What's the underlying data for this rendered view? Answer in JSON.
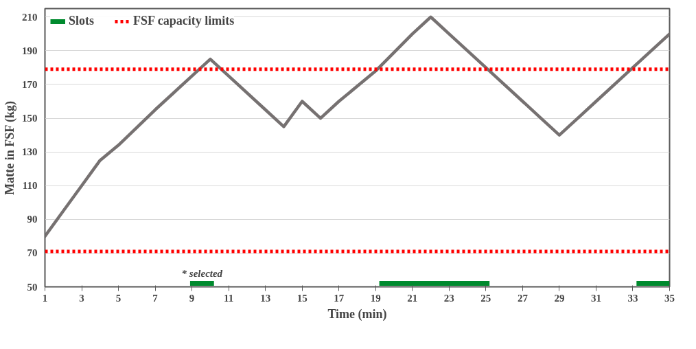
{
  "chart_data": {
    "type": "line",
    "xlabel": "Time (min)",
    "ylabel": "Matte in FSF (kg)",
    "xlim": [
      1,
      35
    ],
    "ylim": [
      50,
      215
    ],
    "xticks": [
      1,
      3,
      5,
      7,
      9,
      11,
      13,
      15,
      17,
      19,
      21,
      23,
      25,
      27,
      29,
      31,
      33,
      35
    ],
    "yticks": [
      50,
      70,
      90,
      110,
      130,
      150,
      170,
      190,
      210
    ],
    "grid": "y",
    "legend": "top",
    "line_style": "solid",
    "marker": "none",
    "series": [
      {
        "color": "#767171",
        "x": [
          1,
          2,
          3,
          4,
          5,
          7,
          9,
          10,
          11,
          13,
          14,
          15,
          16,
          17,
          19,
          21,
          22,
          23,
          25,
          27,
          28,
          29,
          30,
          31,
          33,
          35
        ],
        "values": [
          80,
          95,
          110,
          125,
          134,
          155,
          175,
          185,
          175,
          155,
          145,
          160,
          150,
          160,
          178,
          200,
          210,
          200,
          180,
          160,
          150,
          140,
          150,
          160,
          180,
          200
        ]
      },
      {
        "name": "Slots",
        "color": "#008a2e",
        "x": [
          8.9,
          10.2
        ],
        "values": [
          52,
          52
        ]
      },
      {
        "color": "#008a2e",
        "x": [
          19.2,
          25.2
        ],
        "values": [
          52,
          52
        ]
      },
      {
        "color": "#008a2e",
        "x": [
          33.2,
          35
        ],
        "values": [
          52,
          52
        ]
      }
    ],
    "ref_lines": [
      {
        "axis": "y",
        "value": 179,
        "label": "FSF capacity limits",
        "color": "#ff0000",
        "line_style": "dotted"
      },
      {
        "axis": "y",
        "value": 71,
        "label": null,
        "color": "#ff0000",
        "line_style": "dotted"
      }
    ],
    "annotations": [
      "* selected"
    ]
  }
}
